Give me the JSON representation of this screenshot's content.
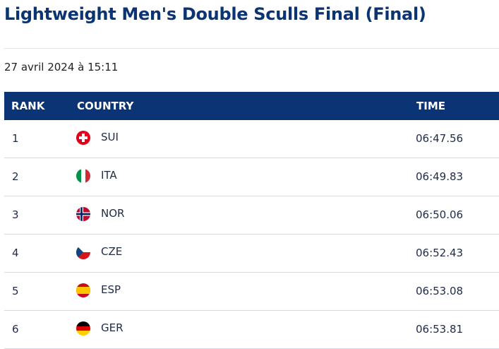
{
  "page": {
    "title": "Lightweight Men's Double Sculls Final (Final)",
    "date": "27 avril 2024 à 15:11"
  },
  "table": {
    "headers": {
      "rank": "RANK",
      "country": "COUNTRY",
      "time": "TIME"
    },
    "rows": [
      {
        "rank": "1",
        "flag": "switzerland-flag-icon",
        "country": "SUI",
        "time": "06:47.56"
      },
      {
        "rank": "2",
        "flag": "italy-flag-icon",
        "country": "ITA",
        "time": "06:49.83"
      },
      {
        "rank": "3",
        "flag": "norway-flag-icon",
        "country": "NOR",
        "time": "06:50.06"
      },
      {
        "rank": "4",
        "flag": "czechia-flag-icon",
        "country": "CZE",
        "time": "06:52.43"
      },
      {
        "rank": "5",
        "flag": "spain-flag-icon",
        "country": "ESP",
        "time": "06:53.08"
      },
      {
        "rank": "6",
        "flag": "germany-flag-icon",
        "country": "GER",
        "time": "06:53.81"
      }
    ]
  },
  "colors": {
    "brand": "#0b3474",
    "divider": "#d6dbe3"
  }
}
